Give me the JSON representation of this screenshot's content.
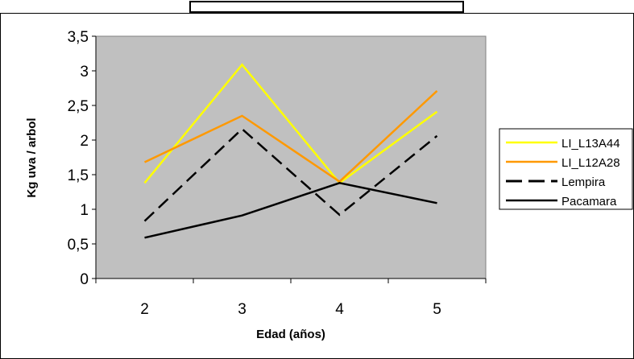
{
  "chart_data": {
    "type": "line",
    "title": "",
    "xlabel": "Edad (años)",
    "ylabel": "Kg uva / arbol",
    "categories": [
      "2",
      "3",
      "4",
      "5"
    ],
    "ylim": [
      0,
      3.5
    ],
    "yticks": [
      "0",
      "0,5",
      "1",
      "1,5",
      "2",
      "2,5",
      "3",
      "3,5"
    ],
    "grid": false,
    "legend_position": "right",
    "plot_background": "#c0c0c0",
    "series": [
      {
        "name": "LI_L13A44",
        "color": "#ffff00",
        "dash": "solid",
        "values": [
          1.38,
          3.09,
          1.38,
          2.41
        ]
      },
      {
        "name": "LI_L12A28",
        "color": "#ff9900",
        "dash": "solid",
        "values": [
          1.68,
          2.35,
          1.4,
          2.71
        ]
      },
      {
        "name": "Lempira",
        "color": "#000000",
        "dash": "dashed",
        "values": [
          0.83,
          2.16,
          0.92,
          2.06
        ]
      },
      {
        "name": "Pacamara",
        "color": "#000000",
        "dash": "solid",
        "values": [
          0.59,
          0.91,
          1.38,
          1.09
        ]
      }
    ]
  }
}
